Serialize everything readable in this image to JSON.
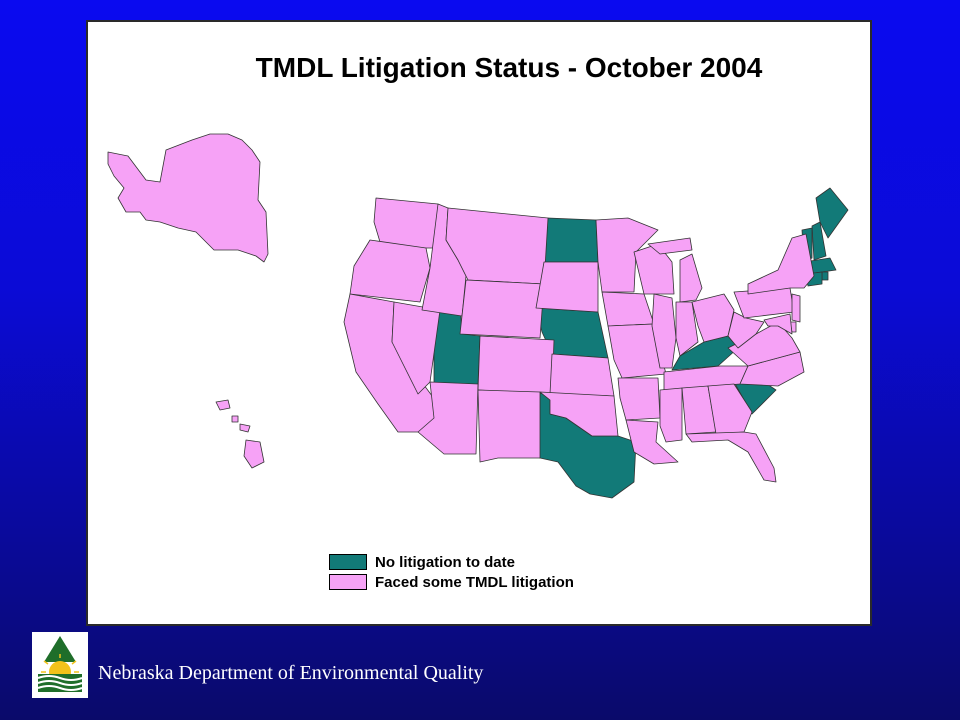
{
  "slide": {
    "title": "TMDL Litigation Status - October 2004",
    "footer_org": "Nebraska Department of  Environmental Quality"
  },
  "legend": [
    {
      "label": "No litigation to date",
      "color": "#127a78"
    },
    {
      "label": "Faced some TMDL litigation",
      "color": "#f6a2f6"
    }
  ],
  "colors": {
    "no_litigation": "#127a78",
    "faced_litigation": "#f6a2f6",
    "border": "#333333"
  },
  "map_data": {
    "subject": "United States TMDL litigation status by state",
    "no_litigation_states": [
      "Utah",
      "North Dakota",
      "Nebraska",
      "Texas",
      "Kentucky",
      "South Carolina",
      "Maine",
      "New Hampshire",
      "Vermont",
      "Massachusetts",
      "Rhode Island",
      "Connecticut"
    ],
    "faced_litigation_states": [
      "Alaska",
      "Hawaii",
      "Washington",
      "Oregon",
      "California",
      "Nevada",
      "Idaho",
      "Montana",
      "Wyoming",
      "Colorado",
      "Arizona",
      "New Mexico",
      "South Dakota",
      "Kansas",
      "Oklahoma",
      "Minnesota",
      "Iowa",
      "Missouri",
      "Arkansas",
      "Louisiana",
      "Wisconsin",
      "Illinois",
      "Michigan",
      "Indiana",
      "Ohio",
      "Tennessee",
      "Mississippi",
      "Alabama",
      "Georgia",
      "Florida",
      "North Carolina",
      "Virginia",
      "West Virginia",
      "Pennsylvania",
      "New York",
      "New Jersey",
      "Delaware",
      "Maryland"
    ]
  }
}
